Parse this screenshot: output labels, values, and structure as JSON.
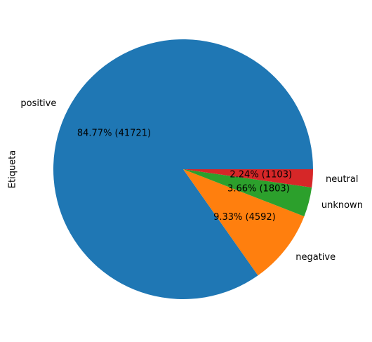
{
  "chart_data": {
    "type": "pie",
    "title": "",
    "ylabel": "Etiqueta",
    "start_angle_deg": 0,
    "direction": "counterclockwise",
    "slices": [
      {
        "label": "positive",
        "value": 41721,
        "pct_label": "84.77% (41721)",
        "color": "#1f77b4"
      },
      {
        "label": "negative",
        "value": 4592,
        "pct_label": "9.33% (4592)",
        "color": "#ff7f0e"
      },
      {
        "label": "unknown",
        "value": 1803,
        "pct_label": "3.66% (1803)",
        "color": "#2ca02c"
      },
      {
        "label": "neutral",
        "value": 1103,
        "pct_label": "2.24% (1103)",
        "color": "#d62728"
      }
    ]
  }
}
